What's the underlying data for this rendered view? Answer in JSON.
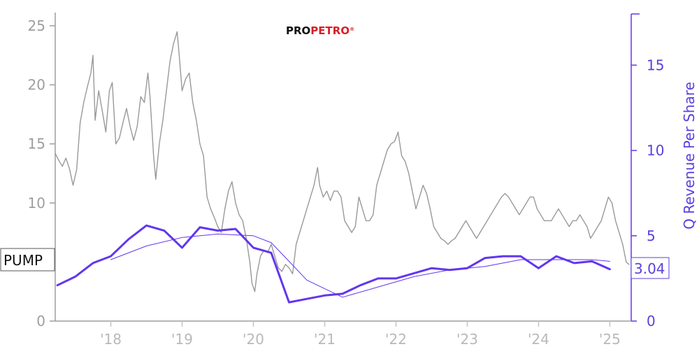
{
  "chart_data": {
    "type": "line",
    "logo": {
      "part1": "PRO",
      "part2": "PETRO",
      "mark": "®",
      "color_part1": "#111111",
      "color_part2": "#d81f26"
    },
    "ticker": "PUMP",
    "last_value_label": "3.04",
    "ylabel_right": "Q Revenue Per Share",
    "ylabel_left": "",
    "xlabel": "",
    "x_ticks": [
      "'18",
      "'19",
      "'20",
      "'21",
      "'22",
      "'23",
      "'24",
      "'25"
    ],
    "x_tick_years": [
      2018,
      2019,
      2020,
      2021,
      2022,
      2023,
      2024,
      2025
    ],
    "xlim": [
      2017.22,
      2025.3
    ],
    "ylim_left": [
      0,
      26
    ],
    "y_ticks_left": [
      0,
      5,
      10,
      15,
      20,
      25
    ],
    "ylim_right": [
      0,
      18
    ],
    "y_ticks_right": [
      0,
      5,
      10,
      15
    ],
    "grid": false,
    "colors": {
      "price": "#999999",
      "revenue": "#6236ee",
      "revenue_avg": "#6236ee",
      "left_axis": "#9e9e9e",
      "right_axis": "#6236ee"
    },
    "series": [
      {
        "axis": "left",
        "points": [
          [
            2017.22,
            14.2
          ],
          [
            2017.27,
            13.6
          ],
          [
            2017.32,
            13.1
          ],
          [
            2017.37,
            13.8
          ],
          [
            2017.42,
            12.9
          ],
          [
            2017.47,
            11.5
          ],
          [
            2017.52,
            12.8
          ],
          [
            2017.57,
            16.8
          ],
          [
            2017.62,
            18.5
          ],
          [
            2017.67,
            19.8
          ],
          [
            2017.72,
            21.0
          ],
          [
            2017.75,
            22.5
          ],
          [
            2017.78,
            17.0
          ],
          [
            2017.83,
            19.5
          ],
          [
            2017.88,
            17.8
          ],
          [
            2017.93,
            16.0
          ],
          [
            2017.98,
            19.5
          ],
          [
            2018.02,
            20.2
          ],
          [
            2018.07,
            15.0
          ],
          [
            2018.12,
            15.5
          ],
          [
            2018.17,
            16.8
          ],
          [
            2018.22,
            18.0
          ],
          [
            2018.27,
            16.5
          ],
          [
            2018.32,
            15.3
          ],
          [
            2018.37,
            16.5
          ],
          [
            2018.42,
            19.0
          ],
          [
            2018.47,
            18.5
          ],
          [
            2018.52,
            21.0
          ],
          [
            2018.55,
            19.0
          ],
          [
            2018.6,
            14.0
          ],
          [
            2018.63,
            12.0
          ],
          [
            2018.68,
            15.0
          ],
          [
            2018.73,
            17.0
          ],
          [
            2018.78,
            19.5
          ],
          [
            2018.83,
            22.0
          ],
          [
            2018.88,
            23.5
          ],
          [
            2018.93,
            24.5
          ],
          [
            2018.96,
            22.5
          ],
          [
            2019.0,
            19.5
          ],
          [
            2019.05,
            20.5
          ],
          [
            2019.1,
            21.0
          ],
          [
            2019.15,
            18.5
          ],
          [
            2019.2,
            17.0
          ],
          [
            2019.25,
            15.0
          ],
          [
            2019.3,
            14.0
          ],
          [
            2019.35,
            10.5
          ],
          [
            2019.4,
            9.5
          ],
          [
            2019.45,
            8.8
          ],
          [
            2019.5,
            8.0
          ],
          [
            2019.55,
            7.5
          ],
          [
            2019.6,
            9.5
          ],
          [
            2019.65,
            11.0
          ],
          [
            2019.7,
            11.8
          ],
          [
            2019.75,
            10.0
          ],
          [
            2019.8,
            9.0
          ],
          [
            2019.85,
            8.5
          ],
          [
            2019.9,
            7.0
          ],
          [
            2019.95,
            5.0
          ],
          [
            2019.98,
            3.2
          ],
          [
            2020.02,
            2.5
          ],
          [
            2020.05,
            4.0
          ],
          [
            2020.1,
            5.5
          ],
          [
            2020.15,
            6.0
          ],
          [
            2020.2,
            5.8
          ],
          [
            2020.25,
            6.5
          ],
          [
            2020.3,
            5.5
          ],
          [
            2020.35,
            4.5
          ],
          [
            2020.4,
            4.2
          ],
          [
            2020.45,
            4.8
          ],
          [
            2020.5,
            4.5
          ],
          [
            2020.55,
            4.0
          ],
          [
            2020.6,
            6.5
          ],
          [
            2020.65,
            7.5
          ],
          [
            2020.7,
            8.5
          ],
          [
            2020.75,
            9.5
          ],
          [
            2020.8,
            10.5
          ],
          [
            2020.85,
            11.5
          ],
          [
            2020.9,
            13.0
          ],
          [
            2020.93,
            11.5
          ],
          [
            2020.98,
            10.5
          ],
          [
            2021.03,
            11.0
          ],
          [
            2021.08,
            10.2
          ],
          [
            2021.13,
            11.0
          ],
          [
            2021.18,
            11.0
          ],
          [
            2021.23,
            10.5
          ],
          [
            2021.28,
            8.5
          ],
          [
            2021.33,
            8.0
          ],
          [
            2021.38,
            7.5
          ],
          [
            2021.43,
            8.0
          ],
          [
            2021.48,
            10.5
          ],
          [
            2021.53,
            9.5
          ],
          [
            2021.58,
            8.5
          ],
          [
            2021.63,
            8.5
          ],
          [
            2021.68,
            9.0
          ],
          [
            2021.73,
            11.5
          ],
          [
            2021.78,
            12.5
          ],
          [
            2021.83,
            13.5
          ],
          [
            2021.88,
            14.5
          ],
          [
            2021.93,
            15.0
          ],
          [
            2021.98,
            15.2
          ],
          [
            2022.03,
            16.0
          ],
          [
            2022.08,
            14.0
          ],
          [
            2022.13,
            13.5
          ],
          [
            2022.18,
            12.5
          ],
          [
            2022.23,
            11.0
          ],
          [
            2022.28,
            9.5
          ],
          [
            2022.33,
            10.5
          ],
          [
            2022.38,
            11.5
          ],
          [
            2022.43,
            10.8
          ],
          [
            2022.48,
            9.5
          ],
          [
            2022.53,
            8.0
          ],
          [
            2022.58,
            7.5
          ],
          [
            2022.63,
            7.0
          ],
          [
            2022.68,
            6.8
          ],
          [
            2022.73,
            6.5
          ],
          [
            2022.78,
            6.8
          ],
          [
            2022.83,
            7.0
          ],
          [
            2022.88,
            7.5
          ],
          [
            2022.93,
            8.0
          ],
          [
            2022.98,
            8.5
          ],
          [
            2023.03,
            8.0
          ],
          [
            2023.08,
            7.5
          ],
          [
            2023.13,
            7.0
          ],
          [
            2023.18,
            7.5
          ],
          [
            2023.23,
            8.0
          ],
          [
            2023.28,
            8.5
          ],
          [
            2023.33,
            9.0
          ],
          [
            2023.38,
            9.5
          ],
          [
            2023.43,
            10.0
          ],
          [
            2023.48,
            10.5
          ],
          [
            2023.53,
            10.8
          ],
          [
            2023.58,
            10.5
          ],
          [
            2023.63,
            10.0
          ],
          [
            2023.68,
            9.5
          ],
          [
            2023.73,
            9.0
          ],
          [
            2023.78,
            9.5
          ],
          [
            2023.83,
            10.0
          ],
          [
            2023.88,
            10.5
          ],
          [
            2023.93,
            10.5
          ],
          [
            2023.98,
            9.5
          ],
          [
            2024.03,
            9.0
          ],
          [
            2024.08,
            8.5
          ],
          [
            2024.13,
            8.5
          ],
          [
            2024.18,
            8.5
          ],
          [
            2024.23,
            9.0
          ],
          [
            2024.28,
            9.5
          ],
          [
            2024.33,
            9.0
          ],
          [
            2024.38,
            8.5
          ],
          [
            2024.43,
            8.0
          ],
          [
            2024.48,
            8.5
          ],
          [
            2024.53,
            8.5
          ],
          [
            2024.58,
            9.0
          ],
          [
            2024.63,
            8.5
          ],
          [
            2024.68,
            8.0
          ],
          [
            2024.73,
            7.0
          ],
          [
            2024.78,
            7.5
          ],
          [
            2024.83,
            8.0
          ],
          [
            2024.88,
            8.5
          ],
          [
            2024.93,
            9.5
          ],
          [
            2024.98,
            10.5
          ],
          [
            2025.03,
            10.0
          ],
          [
            2025.08,
            8.5
          ],
          [
            2025.13,
            7.5
          ],
          [
            2025.18,
            6.5
          ],
          [
            2025.23,
            5.0
          ],
          [
            2025.27,
            4.8
          ]
        ]
      },
      {
        "axis": "right",
        "points": [
          [
            2017.25,
            2.1
          ],
          [
            2017.5,
            2.6
          ],
          [
            2017.75,
            3.4
          ],
          [
            2018.0,
            3.8
          ],
          [
            2018.25,
            4.8
          ],
          [
            2018.5,
            5.6
          ],
          [
            2018.75,
            5.3
          ],
          [
            2019.0,
            4.3
          ],
          [
            2019.25,
            5.5
          ],
          [
            2019.5,
            5.3
          ],
          [
            2019.75,
            5.4
          ],
          [
            2020.0,
            4.3
          ],
          [
            2020.25,
            4.0
          ],
          [
            2020.5,
            1.1
          ],
          [
            2020.75,
            1.3
          ],
          [
            2021.0,
            1.5
          ],
          [
            2021.25,
            1.6
          ],
          [
            2021.5,
            2.1
          ],
          [
            2021.75,
            2.5
          ],
          [
            2022.0,
            2.5
          ],
          [
            2022.25,
            2.8
          ],
          [
            2022.5,
            3.1
          ],
          [
            2022.75,
            3.0
          ],
          [
            2023.0,
            3.1
          ],
          [
            2023.25,
            3.7
          ],
          [
            2023.5,
            3.8
          ],
          [
            2023.75,
            3.8
          ],
          [
            2024.0,
            3.1
          ],
          [
            2024.25,
            3.8
          ],
          [
            2024.5,
            3.4
          ],
          [
            2024.75,
            3.5
          ],
          [
            2025.0,
            3.04
          ]
        ]
      },
      {
        "axis": "right",
        "points": [
          [
            2018.0,
            3.6
          ],
          [
            2018.5,
            4.4
          ],
          [
            2019.0,
            4.9
          ],
          [
            2019.5,
            5.1
          ],
          [
            2020.0,
            5.0
          ],
          [
            2020.25,
            4.6
          ],
          [
            2020.5,
            3.5
          ],
          [
            2020.75,
            2.4
          ],
          [
            2021.0,
            1.9
          ],
          [
            2021.25,
            1.4
          ],
          [
            2021.75,
            2.0
          ],
          [
            2022.25,
            2.6
          ],
          [
            2022.75,
            3.0
          ],
          [
            2023.25,
            3.2
          ],
          [
            2023.75,
            3.6
          ],
          [
            2024.25,
            3.6
          ],
          [
            2024.75,
            3.6
          ],
          [
            2025.0,
            3.5
          ]
        ]
      }
    ]
  }
}
